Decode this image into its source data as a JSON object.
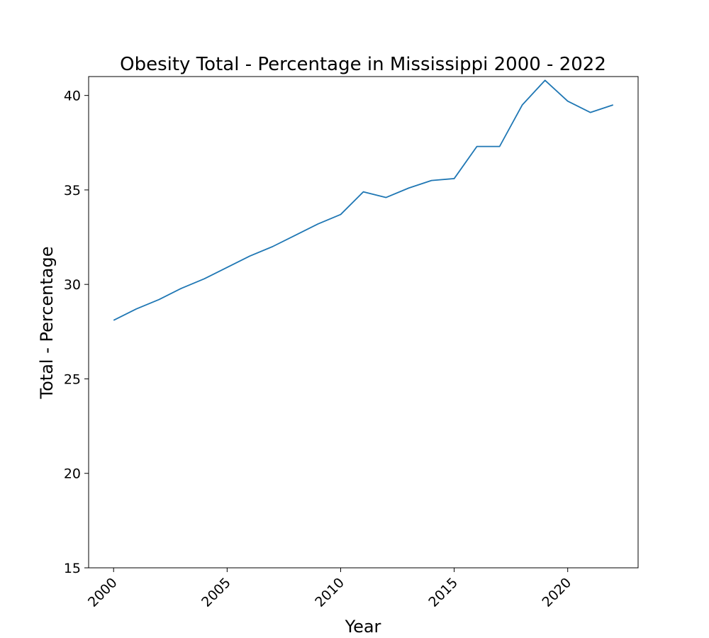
{
  "chart_data": {
    "type": "line",
    "title": "Obesity Total - Percentage in Mississippi 2000 - 2022",
    "xlabel": "Year",
    "ylabel": "Total - Percentage",
    "x": [
      2000,
      2001,
      2002,
      2003,
      2004,
      2005,
      2006,
      2007,
      2008,
      2009,
      2010,
      2011,
      2012,
      2013,
      2014,
      2015,
      2016,
      2017,
      2018,
      2019,
      2020,
      2021,
      2022
    ],
    "series": [
      {
        "values": [
          28.1,
          28.7,
          29.2,
          29.8,
          30.3,
          30.9,
          31.5,
          32.0,
          32.6,
          33.2,
          33.7,
          34.9,
          34.6,
          35.1,
          35.5,
          35.6,
          37.3,
          37.3,
          39.5,
          40.8,
          39.7,
          39.1,
          39.5
        ],
        "color": "#1f77b4"
      }
    ],
    "xticks": [
      "2000",
      "2005",
      "2010",
      "2015",
      "2020"
    ],
    "yticks": [
      "15",
      "20",
      "25",
      "30",
      "35",
      "40"
    ],
    "xlim": [
      1998.9,
      2023.1
    ],
    "ylim": [
      15,
      41
    ],
    "grid": false,
    "xtick_rotation": 45
  }
}
